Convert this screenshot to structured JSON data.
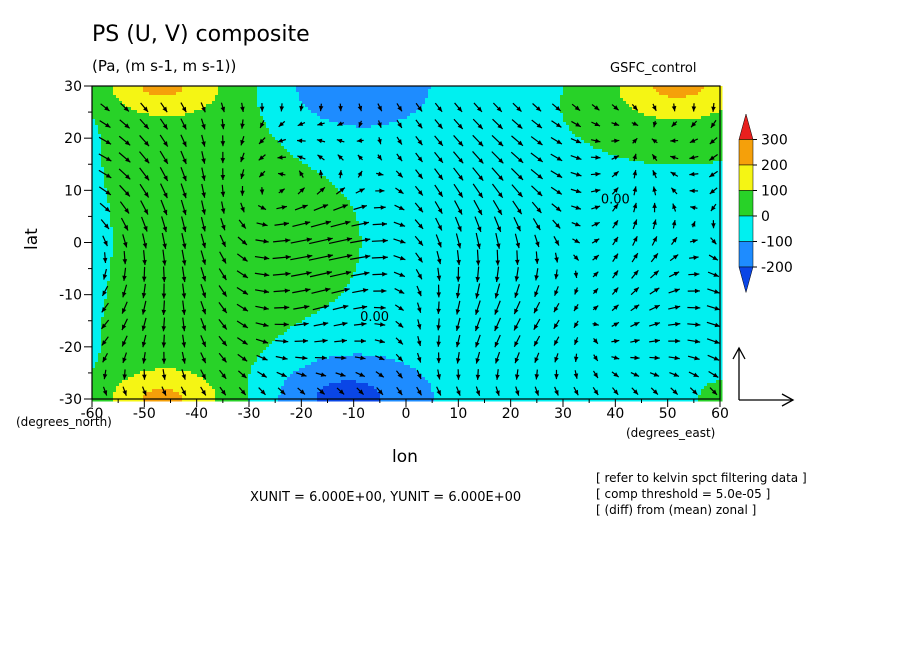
{
  "chart_data": {
    "type": "heatmap",
    "title": "PS (U, V) composite",
    "subtitle": "(Pa, (m s-1, m s-1))",
    "experiment": "GSFC_control",
    "xlabel": "lon",
    "ylabel": "lat",
    "x_unit_label": "(degrees_east)",
    "y_unit_label": "(degrees_north)",
    "xlim": [
      -60,
      60
    ],
    "ylim": [
      -30,
      30
    ],
    "x_ticks": [
      "-60",
      "-50",
      "-40",
      "-30",
      "-20",
      "-10",
      "0",
      "10",
      "20",
      "30",
      "40",
      "50",
      "60"
    ],
    "y_ticks": [
      "-30",
      "-20",
      "-10",
      "0",
      "10",
      "20",
      "30"
    ],
    "contour_labels": [
      "0.00",
      "0.00"
    ],
    "colorbar": {
      "levels": [
        "300",
        "200",
        "100",
        "0",
        "-100",
        "-200"
      ],
      "colors": [
        "#e8201e",
        "#f5a00a",
        "#f5f514",
        "#28d228",
        "#00f0f0",
        "#1e8cff",
        "#0a46e6"
      ]
    },
    "vector_units": "XUNIT = 6.000E+00, YUNIT = 6.000E+00",
    "notes": [
      "[ refer to kelvin spct filtering data ]",
      "[ comp threshold = 5.0e-05 ]",
      "[ (diff) from (mean) zonal ]"
    ]
  }
}
